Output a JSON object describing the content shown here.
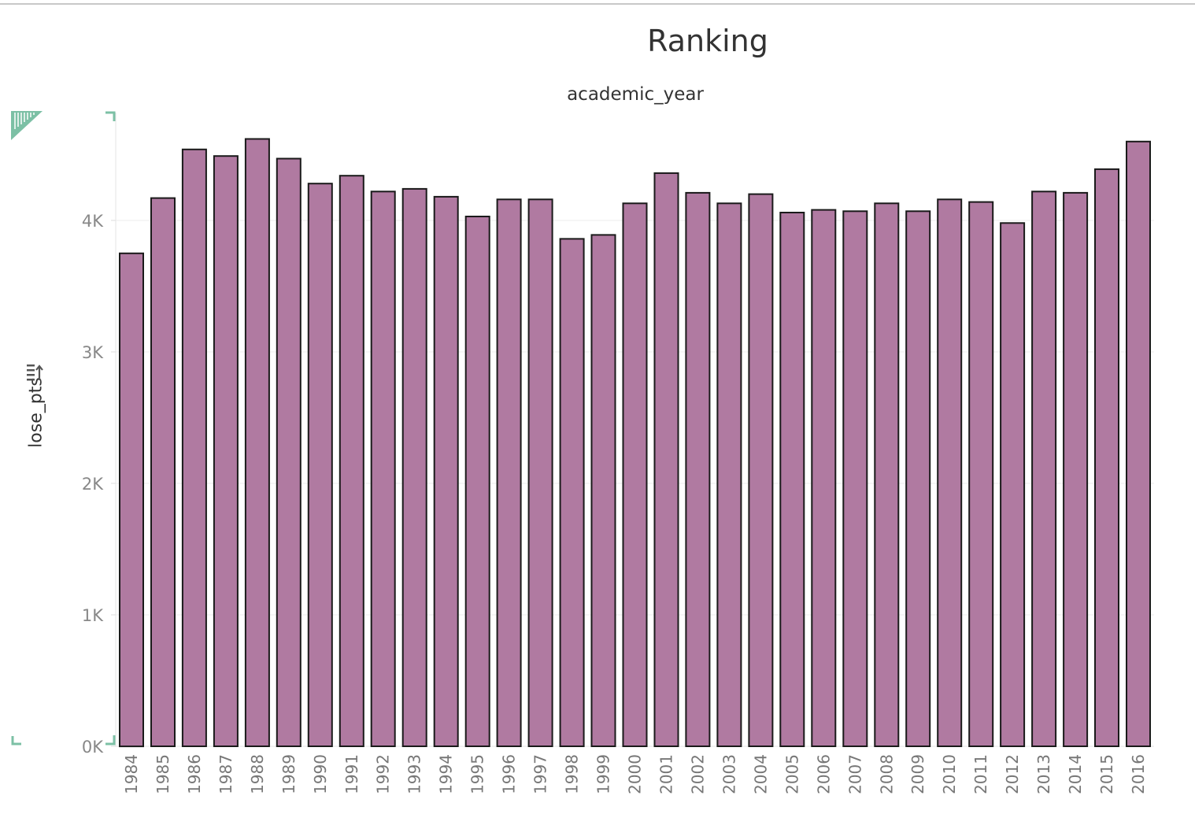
{
  "title": "Ranking",
  "column_header": "academic_year",
  "y_axis_title": "lose_pts",
  "icons": {
    "sort": "sort-icon",
    "corner": "triangle-marker-icon"
  },
  "colors": {
    "bar": "#b07aa1",
    "bar_stroke": "#1a1a1a",
    "accent": "#7cc0a5"
  },
  "chart_data": {
    "type": "bar",
    "title": "Ranking",
    "xlabel": "academic_year",
    "ylabel": "lose_pts",
    "categories": [
      "1984",
      "1985",
      "1986",
      "1987",
      "1988",
      "1989",
      "1990",
      "1991",
      "1992",
      "1993",
      "1994",
      "1995",
      "1996",
      "1997",
      "1998",
      "1999",
      "2000",
      "2001",
      "2002",
      "2003",
      "2004",
      "2005",
      "2006",
      "2007",
      "2008",
      "2009",
      "2010",
      "2011",
      "2012",
      "2013",
      "2014",
      "2015",
      "2016"
    ],
    "values": [
      3750,
      4170,
      4540,
      4490,
      4620,
      4470,
      4280,
      4340,
      4220,
      4240,
      4180,
      4030,
      4160,
      4160,
      3860,
      3890,
      4130,
      4360,
      4210,
      4130,
      4200,
      4060,
      4080,
      4070,
      4130,
      4070,
      4160,
      4140,
      3980,
      4220,
      4210,
      4390,
      4600
    ],
    "ylim": [
      0,
      4800
    ],
    "yticks": [
      0,
      1000,
      2000,
      3000,
      4000
    ],
    "ytick_labels": [
      "0K",
      "1K",
      "2K",
      "3K",
      "4K"
    ],
    "grid": true,
    "legend": "none"
  }
}
